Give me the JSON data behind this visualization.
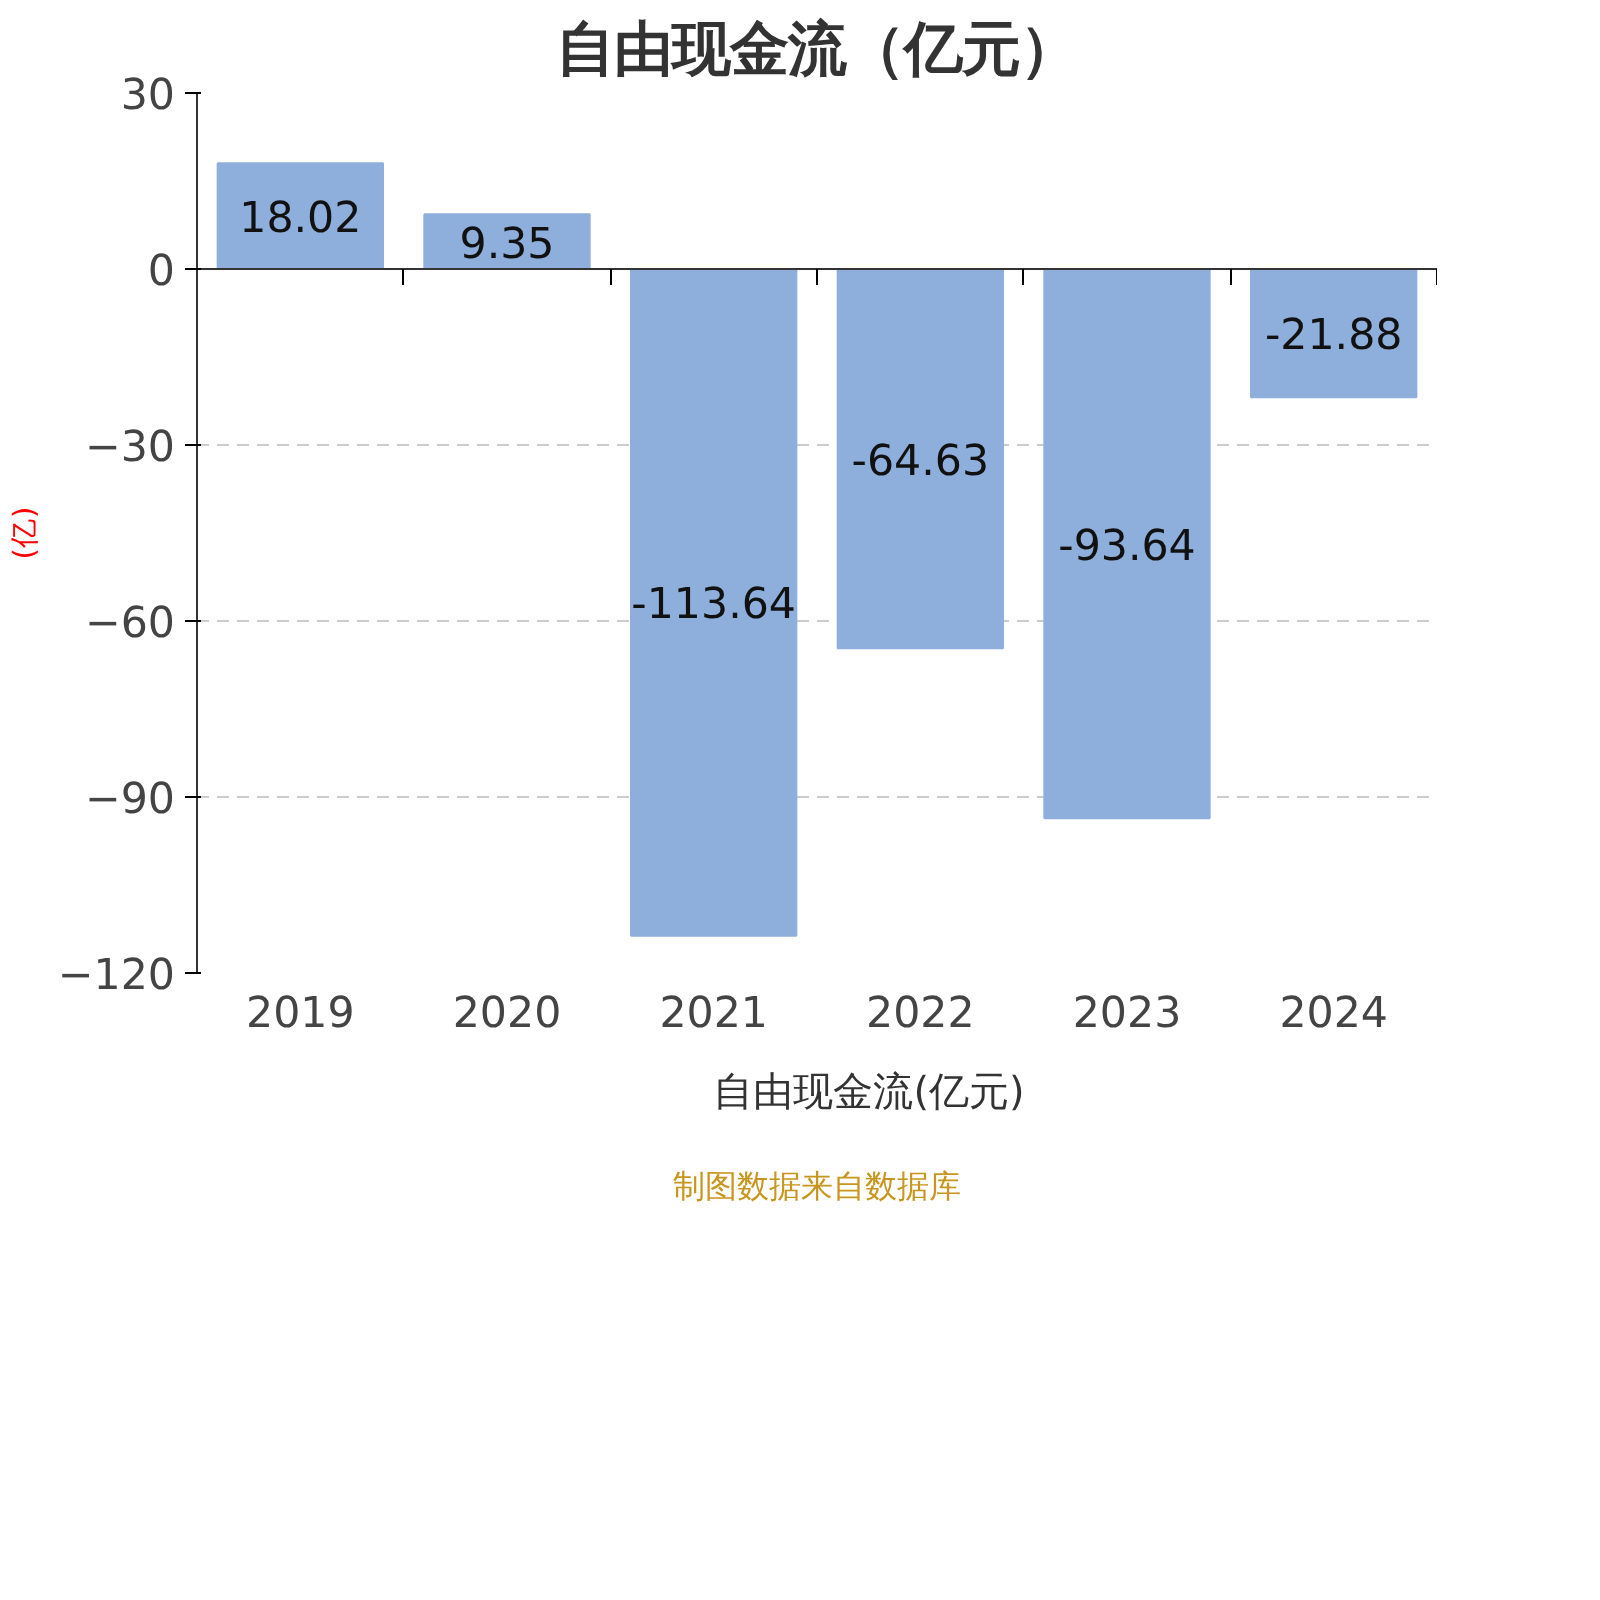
{
  "chart_data": {
    "type": "bar",
    "title": "自由现金流（亿元）",
    "ylabel": "(亿)",
    "categories": [
      "2019",
      "2020",
      "2021",
      "2022",
      "2023",
      "2024"
    ],
    "series": [
      {
        "name": "自由现金流(亿元)",
        "color": "#8eaedb",
        "values": [
          18.02,
          9.35,
          -113.64,
          -64.63,
          -93.64,
          -21.88
        ]
      }
    ],
    "ylim": [
      -120,
      30
    ],
    "yticks": [
      -120,
      -90,
      -60,
      -30,
      0,
      30
    ],
    "grid": "y",
    "legend": "bottom",
    "data_labels": true,
    "annotations": [
      "制图数据来自数据库"
    ]
  }
}
